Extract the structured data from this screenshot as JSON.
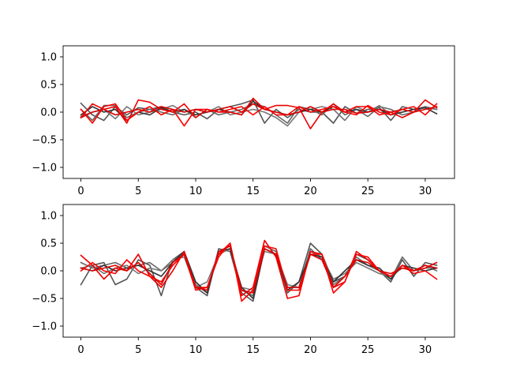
{
  "chart_data": [
    {
      "type": "line",
      "title": "",
      "xlabel": "",
      "ylabel": "",
      "xlim": [
        -1.55,
        32.55
      ],
      "ylim": [
        -1.2,
        1.2
      ],
      "xticks": [
        0,
        5,
        10,
        15,
        20,
        25,
        30
      ],
      "xtick_labels": [
        "0",
        "5",
        "10",
        "15",
        "20",
        "25",
        "30"
      ],
      "yticks": [
        -1.0,
        -0.5,
        0.0,
        0.5,
        1.0
      ],
      "ytick_labels": [
        "−1.0",
        "−0.5",
        "0.0",
        "0.5",
        "1.0"
      ],
      "grid": false,
      "legend": "none",
      "x": [
        0,
        1,
        2,
        3,
        4,
        5,
        6,
        7,
        8,
        9,
        10,
        11,
        12,
        13,
        14,
        15,
        16,
        17,
        18,
        19,
        20,
        21,
        22,
        23,
        24,
        25,
        26,
        27,
        28,
        29,
        30,
        31
      ],
      "series": [
        {
          "color": "#555555",
          "values": [
            0.16,
            -0.05,
            -0.15,
            0.1,
            -0.05,
            0.08,
            0.05,
            0.1,
            0.0,
            -0.05,
            0.0,
            -0.12,
            0.05,
            0.1,
            0.15,
            0.22,
            -0.2,
            0.05,
            -0.1,
            0.05,
            0.0,
            0.0,
            -0.2,
            0.1,
            -0.02,
            0.05,
            0.08,
            -0.15,
            0.1,
            0.05,
            0.08,
            0.05
          ]
        },
        {
          "color": "#666666",
          "values": [
            0.05,
            -0.15,
            0.12,
            0.12,
            -0.1,
            0.0,
            0.05,
            0.0,
            -0.05,
            0.05,
            -0.1,
            0.05,
            -0.05,
            0.0,
            0.05,
            0.15,
            0.1,
            -0.05,
            -0.2,
            0.1,
            0.05,
            -0.05,
            0.15,
            -0.05,
            0.05,
            -0.08,
            0.1,
            0.05,
            -0.05,
            0.0,
            0.1,
            0.05
          ]
        },
        {
          "color": "#777777",
          "values": [
            -0.08,
            0.0,
            0.05,
            -0.12,
            0.1,
            -0.05,
            0.0,
            0.05,
            0.12,
            0.0,
            0.05,
            0.0,
            0.1,
            -0.05,
            0.0,
            0.05,
            0.0,
            -0.1,
            -0.25,
            0.0,
            0.05,
            0.1,
            0.05,
            -0.15,
            0.1,
            0.0,
            0.12,
            -0.05,
            0.0,
            0.05,
            0.1,
            0.05
          ]
        },
        {
          "color": "#333333",
          "values": [
            -0.05,
            0.1,
            0.0,
            0.05,
            -0.15,
            0.0,
            -0.05,
            0.08,
            0.0,
            0.05,
            -0.05,
            0.0,
            0.05,
            0.0,
            -0.05,
            0.2,
            0.05,
            0.0,
            -0.05,
            0.0,
            0.05,
            0.0,
            0.1,
            0.0,
            0.05,
            0.0,
            0.05,
            -0.05,
            0.0,
            0.05,
            0.08,
            -0.03
          ]
        },
        {
          "color": "#ee0000",
          "values": [
            -0.1,
            0.15,
            0.05,
            0.1,
            -0.2,
            0.22,
            0.18,
            0.05,
            0.0,
            0.15,
            -0.1,
            0.05,
            0.0,
            0.0,
            -0.05,
            0.25,
            0.05,
            0.12,
            0.12,
            0.08,
            -0.3,
            0.0,
            0.15,
            0.0,
            0.1,
            0.1,
            -0.05,
            0.0,
            -0.1,
            0.0,
            0.22,
            0.08
          ]
        },
        {
          "color": "#ff0000",
          "values": [
            0.05,
            -0.2,
            0.1,
            0.15,
            -0.15,
            0.0,
            0.1,
            -0.05,
            0.05,
            -0.25,
            0.05,
            0.05,
            0.0,
            0.05,
            0.1,
            -0.05,
            0.1,
            -0.05,
            -0.05,
            0.1,
            0.0,
            0.05,
            0.1,
            0.0,
            -0.05,
            0.12,
            0.0,
            -0.05,
            0.05,
            0.1,
            -0.05,
            0.15
          ]
        },
        {
          "color": "#dd0000",
          "values": [
            -0.1,
            0.0,
            0.05,
            -0.05,
            0.0,
            0.05,
            0.0,
            0.1,
            0.05,
            0.0,
            0.05,
            0.0,
            0.05,
            0.1,
            0.0,
            0.15,
            0.05,
            0.0,
            -0.05,
            0.0,
            0.1,
            0.0,
            0.05,
            0.05,
            -0.02,
            0.0,
            0.05,
            0.0,
            0.05,
            0.0,
            0.05,
            0.1
          ]
        }
      ]
    },
    {
      "type": "line",
      "title": "",
      "xlabel": "",
      "ylabel": "",
      "xlim": [
        -1.55,
        32.55
      ],
      "ylim": [
        -1.2,
        1.2
      ],
      "xticks": [
        0,
        5,
        10,
        15,
        20,
        25,
        30
      ],
      "xtick_labels": [
        "0",
        "5",
        "10",
        "15",
        "20",
        "25",
        "30"
      ],
      "yticks": [
        -1.0,
        -0.5,
        0.0,
        0.5,
        1.0
      ],
      "ytick_labels": [
        "−1.0",
        "−0.5",
        "0.0",
        "0.5",
        "1.0"
      ],
      "grid": false,
      "legend": "none",
      "x": [
        0,
        1,
        2,
        3,
        4,
        5,
        6,
        7,
        8,
        9,
        10,
        11,
        12,
        13,
        14,
        15,
        16,
        17,
        18,
        19,
        20,
        21,
        22,
        23,
        24,
        25,
        26,
        27,
        28,
        29,
        30,
        31
      ],
      "series": [
        {
          "color": "#555555",
          "values": [
            -0.25,
            0.1,
            0.15,
            -0.25,
            -0.15,
            0.2,
            0.1,
            -0.45,
            0.2,
            0.35,
            -0.3,
            -0.45,
            0.4,
            0.35,
            -0.4,
            -0.55,
            0.4,
            0.3,
            -0.4,
            -0.2,
            0.5,
            0.3,
            -0.2,
            -0.1,
            0.3,
            0.2,
            0.0,
            -0.2,
            0.2,
            -0.1,
            0.15,
            0.1
          ]
        },
        {
          "color": "#666666",
          "values": [
            0.15,
            0.05,
            0.1,
            0.15,
            0.05,
            0.1,
            0.15,
            0.0,
            0.15,
            0.3,
            -0.25,
            -0.4,
            0.35,
            0.45,
            -0.35,
            -0.45,
            0.45,
            0.35,
            -0.3,
            -0.3,
            0.4,
            0.2,
            -0.25,
            -0.1,
            0.25,
            0.1,
            0.0,
            -0.15,
            0.25,
            0.0,
            0.05,
            0.05
          ]
        },
        {
          "color": "#777777",
          "values": [
            0.05,
            0.1,
            -0.05,
            0.05,
            0.1,
            -0.05,
            0.05,
            0.0,
            0.2,
            0.25,
            -0.3,
            -0.2,
            0.3,
            0.4,
            -0.3,
            -0.35,
            0.35,
            0.3,
            -0.25,
            -0.3,
            0.35,
            0.25,
            -0.15,
            -0.05,
            0.15,
            0.05,
            -0.05,
            -0.1,
            0.05,
            0.0,
            0.1,
            0.0
          ]
        },
        {
          "color": "#333333",
          "values": [
            0.05,
            0.0,
            0.1,
            0.0,
            0.05,
            0.1,
            0.0,
            -0.1,
            0.15,
            0.35,
            -0.2,
            -0.4,
            0.35,
            0.4,
            -0.3,
            -0.5,
            0.4,
            0.3,
            -0.35,
            -0.2,
            0.3,
            0.25,
            -0.2,
            0.0,
            0.2,
            0.1,
            0.05,
            -0.15,
            0.1,
            0.05,
            0.0,
            0.05
          ]
        },
        {
          "color": "#ee0000",
          "values": [
            0.28,
            0.1,
            -0.15,
            0.05,
            0.0,
            0.3,
            -0.1,
            -0.3,
            0.0,
            0.35,
            -0.3,
            -0.3,
            0.3,
            0.5,
            -0.45,
            -0.3,
            0.55,
            0.25,
            -0.5,
            -0.45,
            0.35,
            0.3,
            -0.3,
            -0.2,
            0.35,
            0.2,
            0.0,
            -0.1,
            0.1,
            0.0,
            0.05,
            0.15
          ]
        },
        {
          "color": "#ff0000",
          "values": [
            0.0,
            0.15,
            0.0,
            -0.05,
            0.2,
            0.0,
            -0.1,
            -0.2,
            0.1,
            0.3,
            -0.35,
            -0.3,
            0.25,
            0.5,
            -0.55,
            -0.35,
            0.45,
            0.4,
            -0.35,
            -0.35,
            0.3,
            0.3,
            -0.4,
            -0.2,
            0.3,
            0.25,
            0.0,
            -0.1,
            0.1,
            -0.05,
            0.0,
            -0.15
          ]
        },
        {
          "color": "#dd0000",
          "values": [
            0.05,
            0.0,
            0.05,
            0.1,
            0.0,
            0.15,
            -0.05,
            -0.25,
            0.15,
            0.3,
            -0.3,
            -0.35,
            0.35,
            0.45,
            -0.35,
            -0.4,
            0.4,
            0.3,
            -0.3,
            -0.3,
            0.3,
            0.2,
            -0.3,
            -0.1,
            0.2,
            0.15,
            0.0,
            -0.05,
            0.05,
            0.0,
            0.1,
            0.05
          ]
        }
      ]
    }
  ]
}
